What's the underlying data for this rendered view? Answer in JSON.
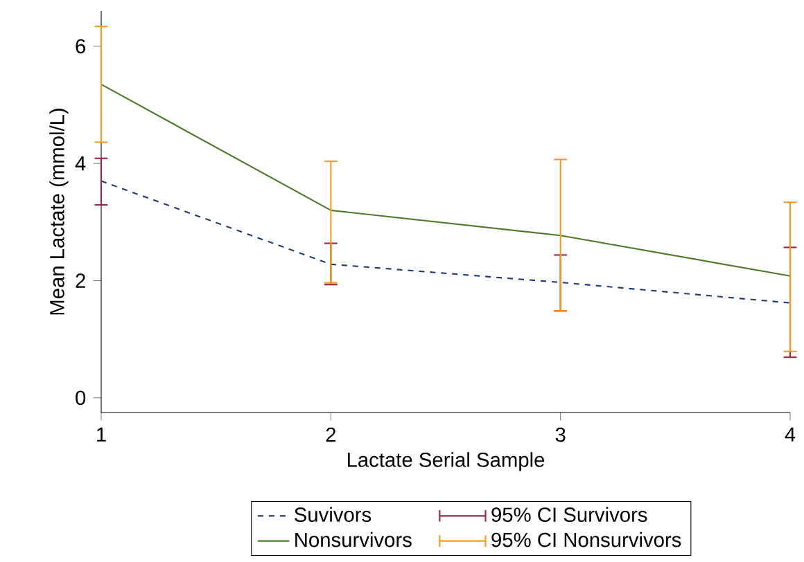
{
  "chart_data": {
    "type": "line",
    "xlabel": "Lactate Serial Sample",
    "ylabel": "Mean Lactate (mmol/L)",
    "x": [
      1,
      2,
      3,
      4
    ],
    "xlim": [
      1,
      4
    ],
    "xticks": [
      1,
      2,
      3,
      4
    ],
    "ylim": [
      -0.25,
      6.6
    ],
    "yticks": [
      0,
      2,
      4,
      6
    ],
    "grid": false,
    "legend": "bottom",
    "marker": "none",
    "annotations": [
      "95% CI Survivors",
      "95% CI Nonsurvivors"
    ],
    "series": [
      {
        "name": "Suvivors",
        "color": "#1f3a7a",
        "line_style": "dashed",
        "values": [
          3.7,
          2.28,
          1.97,
          1.62
        ],
        "errors": [
          [
            3.28,
            4.1
          ],
          [
            1.92,
            2.65
          ],
          [
            1.47,
            2.45
          ],
          [
            0.68,
            2.58
          ]
        ]
      },
      {
        "name": "Nonsurvivors",
        "color": "#4f7a2a",
        "line_style": "solid",
        "values": [
          5.35,
          3.2,
          2.77,
          2.08
        ],
        "errors": [
          [
            4.35,
            6.35
          ],
          [
            1.95,
            4.05
          ],
          [
            1.47,
            4.08
          ],
          [
            0.78,
            3.35
          ]
        ]
      }
    ]
  }
}
